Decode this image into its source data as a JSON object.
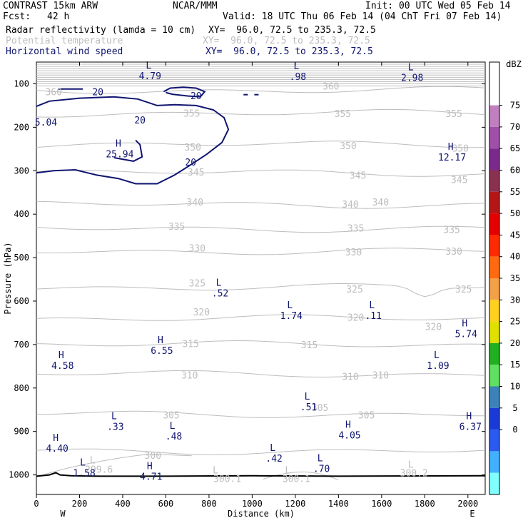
{
  "header": {
    "model": "CONTRAST 15km ARW",
    "center": "NCAR/MMM",
    "init": "Init: 00 UTC Wed 05 Feb 14",
    "fcst_label": "Fcst:",
    "fcst_value": "42 h",
    "valid": "Valid: 18 UTC Thu 06 Feb 14 (04 ChT Fri 07 Feb 14)"
  },
  "fields": [
    {
      "name": "Radar reflectivity (lamda = 10 cm)",
      "xy": "XY=  96.0, 72.5 to 235.3, 72.5",
      "color": "#000000"
    },
    {
      "name": "Potential temperature",
      "xy": "XY=  96.0, 72.5 to 235.3, 72.5",
      "color": "#bdbdbd"
    },
    {
      "name": "Horizontal wind speed",
      "xy": "XY=  96.0, 72.5 to 235.3, 72.5",
      "color": "#0f1470"
    }
  ],
  "chart_data": {
    "type": "contour-cross-section",
    "xlabel": "Distance (km)",
    "ylabel": "Pressure (hPa)",
    "xlim": [
      0,
      2080
    ],
    "ylim": [
      1045,
      50
    ],
    "x_ticks": [
      "0",
      "200",
      "400",
      "600",
      "800",
      "1000",
      "1200",
      "1400",
      "1600",
      "1800",
      "2000"
    ],
    "y_ticks": [
      "100",
      "200",
      "300",
      "400",
      "500",
      "600",
      "700",
      "800",
      "900",
      "1000"
    ],
    "x_end_labels": {
      "west": "W",
      "east": "E"
    },
    "theta_levels": [
      {
        "theta": 360,
        "p": 115
      },
      {
        "theta": 355,
        "p": 168
      },
      {
        "theta": 350,
        "p": 240
      },
      {
        "theta": 345,
        "p": 305
      },
      {
        "theta": 340,
        "p": 378
      },
      {
        "theta": 335,
        "p": 433
      },
      {
        "theta": 330,
        "p": 485
      },
      {
        "theta": 325,
        "p": 568
      },
      {
        "theta": 320,
        "p": 640
      },
      {
        "theta": 315,
        "p": 700
      },
      {
        "theta": 310,
        "p": 768
      },
      {
        "theta": 305,
        "p": 860
      },
      {
        "theta": 300,
        "p": 945
      }
    ],
    "theta_labels": [
      {
        "text": "360",
        "x": 80,
        "p": 118
      },
      {
        "text": "360",
        "x": 1365,
        "p": 105
      },
      {
        "text": "355",
        "x": 720,
        "p": 167
      },
      {
        "text": "355",
        "x": 1420,
        "p": 168
      },
      {
        "text": "355",
        "x": 1935,
        "p": 168
      },
      {
        "text": "350",
        "x": 725,
        "p": 245
      },
      {
        "text": "350",
        "x": 1445,
        "p": 242
      },
      {
        "text": "350",
        "x": 1965,
        "p": 248
      },
      {
        "text": "345",
        "x": 740,
        "p": 303
      },
      {
        "text": "345",
        "x": 1490,
        "p": 310
      },
      {
        "text": "345",
        "x": 1960,
        "p": 320
      },
      {
        "text": "340",
        "x": 735,
        "p": 372
      },
      {
        "text": "340",
        "x": 1455,
        "p": 377
      },
      {
        "text": "340",
        "x": 1595,
        "p": 372
      },
      {
        "text": "335",
        "x": 650,
        "p": 428
      },
      {
        "text": "335",
        "x": 1480,
        "p": 432
      },
      {
        "text": "335",
        "x": 1925,
        "p": 435
      },
      {
        "text": "330",
        "x": 745,
        "p": 478
      },
      {
        "text": "330",
        "x": 1470,
        "p": 487
      },
      {
        "text": "330",
        "x": 1935,
        "p": 485
      },
      {
        "text": "325",
        "x": 745,
        "p": 558
      },
      {
        "text": "325",
        "x": 1475,
        "p": 572
      },
      {
        "text": "325",
        "x": 1980,
        "p": 572
      },
      {
        "text": "320",
        "x": 765,
        "p": 625
      },
      {
        "text": "320",
        "x": 1480,
        "p": 637
      },
      {
        "text": "320",
        "x": 1840,
        "p": 658
      },
      {
        "text": "315",
        "x": 715,
        "p": 698
      },
      {
        "text": "315",
        "x": 1265,
        "p": 700
      },
      {
        "text": "310",
        "x": 710,
        "p": 770
      },
      {
        "text": "310",
        "x": 1455,
        "p": 773
      },
      {
        "text": "310",
        "x": 1595,
        "p": 770
      },
      {
        "text": "305",
        "x": 625,
        "p": 862
      },
      {
        "text": "305",
        "x": 1315,
        "p": 845
      },
      {
        "text": "305",
        "x": 1530,
        "p": 862
      },
      {
        "text": "300",
        "x": 540,
        "p": 955
      },
      {
        "text": "299.6",
        "x": 290,
        "p": 987
      },
      {
        "text": "300.1",
        "x": 885,
        "p": 1008
      },
      {
        "text": "300.1",
        "x": 1205,
        "p": 1008
      },
      {
        "text": "300.2",
        "x": 1750,
        "p": 995
      }
    ],
    "theta_extrema": [
      {
        "mark": "L",
        "x": 260,
        "p": 965
      },
      {
        "mark": "L",
        "x": 830,
        "p": 988
      },
      {
        "mark": "L",
        "x": 1165,
        "p": 988
      },
      {
        "mark": "L",
        "x": 1735,
        "p": 975
      }
    ],
    "wind_contours": [
      {
        "value": 20,
        "label_x": 285,
        "label_p": 118
      },
      {
        "value": 20,
        "label_x": 740,
        "label_p": 127
      },
      {
        "value": 20,
        "label_x": 480,
        "label_p": 183
      },
      {
        "value": 20,
        "label_x": 715,
        "label_p": 280
      }
    ],
    "wind_extrema": [
      {
        "mark": "L",
        "value": "4.79",
        "x": 520,
        "p": 68
      },
      {
        "mark": "L",
        "value": ".98",
        "x": 1205,
        "p": 70
      },
      {
        "mark": "L",
        "value": "2.98",
        "x": 1735,
        "p": 72
      },
      {
        "mark": "",
        "value": "5.04",
        "x": -15,
        "p": 175
      },
      {
        "mark": "H",
        "value": "25.94",
        "x": 380,
        "p": 248
      },
      {
        "mark": "H",
        "value": "12.17",
        "x": 1920,
        "p": 255
      },
      {
        "mark": "L",
        "value": ".52",
        "x": 845,
        "p": 568
      },
      {
        "mark": "L",
        "value": "1.74",
        "x": 1175,
        "p": 620
      },
      {
        "mark": "L",
        "value": ".11",
        "x": 1555,
        "p": 620
      },
      {
        "mark": "H",
        "value": "5.74",
        "x": 1985,
        "p": 662
      },
      {
        "mark": "H",
        "value": "6.55",
        "x": 575,
        "p": 700
      },
      {
        "mark": "H",
        "value": "4.58",
        "x": 115,
        "p": 735
      },
      {
        "mark": "L",
        "value": "1.09",
        "x": 1855,
        "p": 735
      },
      {
        "mark": "L",
        "value": ".51",
        "x": 1255,
        "p": 830
      },
      {
        "mark": "L",
        "value": ".33",
        "x": 360,
        "p": 875
      },
      {
        "mark": "H",
        "value": "6.37",
        "x": 2005,
        "p": 875
      },
      {
        "mark": "L",
        "value": ".48",
        "x": 630,
        "p": 897
      },
      {
        "mark": "H",
        "value": "4.05",
        "x": 1445,
        "p": 895
      },
      {
        "mark": "H",
        "value": "4.40",
        "x": 90,
        "p": 925
      },
      {
        "mark": "L",
        "value": ".42",
        "x": 1095,
        "p": 948
      },
      {
        "mark": "L",
        "value": ".70",
        "x": 1315,
        "p": 972
      },
      {
        "mark": "L",
        "value": "1.58",
        "x": 215,
        "p": 982
      },
      {
        "mark": "H",
        "value": "4.71",
        "x": 525,
        "p": 990
      }
    ],
    "colorbar": {
      "unit": "dBZ",
      "labels": [
        "75",
        "70",
        "65",
        "60",
        "55",
        "50",
        "45",
        "40",
        "35",
        "30",
        "25",
        "20",
        "15",
        "10",
        "5",
        "0"
      ],
      "colors": [
        "#c080c0",
        "#a050a8",
        "#7a2a8a",
        "#8a3050",
        "#b41616",
        "#e40000",
        "#ff2a00",
        "#ff6a10",
        "#f4a048",
        "#ffd020",
        "#e0e000",
        "#20b020",
        "#60e060",
        "#3a82b8",
        "#1a3ad8",
        "#2a5af0",
        "#40b0ff",
        "#80ffff"
      ]
    }
  }
}
